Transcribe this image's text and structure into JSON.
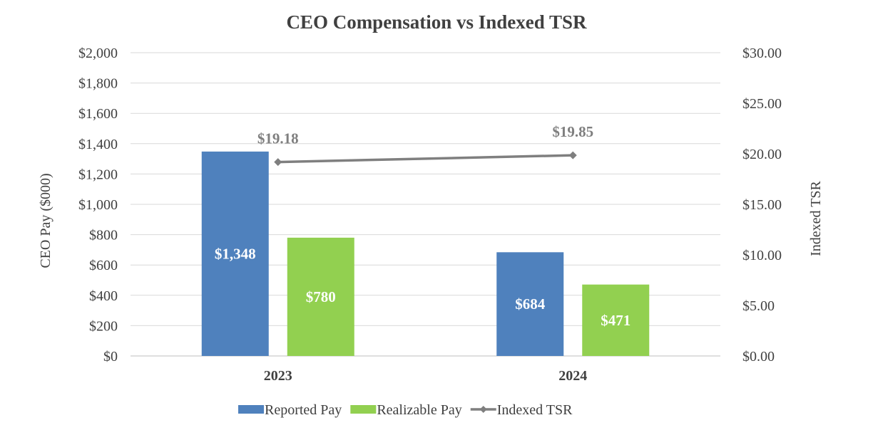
{
  "chart_data": {
    "type": "bar",
    "title": "CEO Compensation vs Indexed TSR",
    "categories": [
      "2023",
      "2024"
    ],
    "ylabel": "CEO Pay ($000)",
    "y2label": "Indexed TSR",
    "ylim": [
      0,
      2000
    ],
    "y2lim": [
      0,
      30
    ],
    "yticks": [
      0,
      200,
      400,
      600,
      800,
      1000,
      1200,
      1400,
      1600,
      1800,
      2000
    ],
    "ytick_labels": [
      "$0",
      "$200",
      "$400",
      "$600",
      "$800",
      "$1,000",
      "$1,200",
      "$1,400",
      "$1,600",
      "$1,800",
      "$2,000"
    ],
    "y2ticks": [
      0,
      5,
      10,
      15,
      20,
      25,
      30
    ],
    "y2tick_labels": [
      "$0.00",
      "$5.00",
      "$10.00",
      "$15.00",
      "$20.00",
      "$25.00",
      "$30.00"
    ],
    "grid": true,
    "legend_position": "bottom",
    "series": [
      {
        "name": "Reported Pay",
        "kind": "bar",
        "axis": "left",
        "color": "#4f81bd",
        "values": [
          1348,
          684
        ],
        "labels": [
          "$1,348",
          "$684"
        ]
      },
      {
        "name": "Realizable Pay",
        "kind": "bar",
        "axis": "left",
        "color": "#92d050",
        "values": [
          780,
          471
        ],
        "labels": [
          "$780",
          "$471"
        ]
      },
      {
        "name": "Indexed TSR",
        "kind": "line",
        "axis": "right",
        "color": "#7f7f7f",
        "values": [
          19.18,
          19.85
        ],
        "labels": [
          "$19.18",
          "$19.85"
        ]
      }
    ]
  }
}
